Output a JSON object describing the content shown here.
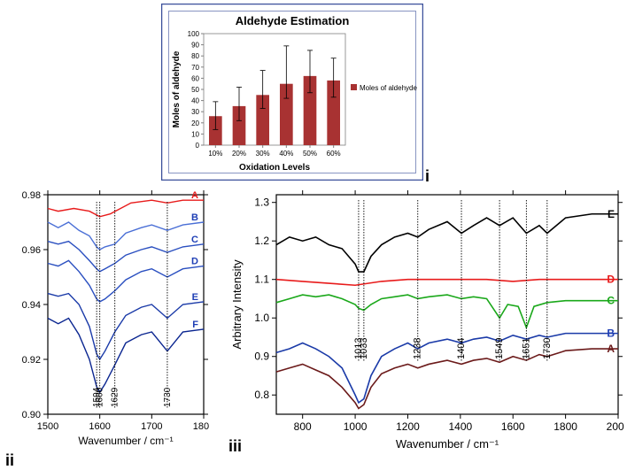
{
  "panel_labels": {
    "i": "i",
    "ii": "ii",
    "iii": "iii"
  },
  "bar_chart": {
    "type": "bar",
    "title": "Aldehyde Estimation",
    "title_fontsize": 13,
    "xlabel": "Oxidation Levels",
    "ylabel": "Moles of aldehyde",
    "label_fontsize": 10,
    "legend_label": "Moles of aldehyde",
    "legend_marker": "■",
    "ylim": [
      0,
      100
    ],
    "ytick_step": 10,
    "categories": [
      "10%",
      "20%",
      "30%",
      "40%",
      "50%",
      "60%"
    ],
    "values": [
      26,
      35,
      45,
      55,
      62,
      58
    ],
    "err_up": [
      13,
      17,
      22,
      34,
      23,
      20
    ],
    "err_down": [
      12,
      13,
      12,
      13,
      15,
      15
    ],
    "bar_color": "#a83232",
    "bar_width": 0.55,
    "background_color": "#ffffff",
    "border_color": "#3a4f9a",
    "plot_border_color": "#808080",
    "grid": false
  },
  "spectrum_ii": {
    "type": "line",
    "xlabel": "Wavenumber / cm⁻¹",
    "label_fontsize": 12,
    "ylim": [
      0.9,
      0.98
    ],
    "ytick_step": 0.02,
    "xlim": [
      1500,
      1800
    ],
    "xtick_step": 100,
    "background_color": "#ffffff",
    "axis_color": "#000000",
    "tick_fontsize": 11,
    "annotation_lines": [
      1594,
      1600,
      1629,
      1730
    ],
    "annotation_color": "#000000",
    "bracket_range": [
      1594,
      1730
    ],
    "series": [
      {
        "label": "A",
        "color": "#e81b1b",
        "label_color": "#e81b1b",
        "offset": 0.975,
        "pts": [
          [
            1500,
            0.975
          ],
          [
            1520,
            0.974
          ],
          [
            1550,
            0.975
          ],
          [
            1580,
            0.974
          ],
          [
            1600,
            0.972
          ],
          [
            1620,
            0.973
          ],
          [
            1640,
            0.975
          ],
          [
            1660,
            0.977
          ],
          [
            1700,
            0.978
          ],
          [
            1730,
            0.977
          ],
          [
            1760,
            0.978
          ],
          [
            1800,
            0.978
          ]
        ]
      },
      {
        "label": "B",
        "color": "#4a6fd6",
        "label_color": "#1f3fb5",
        "offset": 0.968,
        "pts": [
          [
            1500,
            0.97
          ],
          [
            1520,
            0.968
          ],
          [
            1540,
            0.97
          ],
          [
            1560,
            0.967
          ],
          [
            1580,
            0.965
          ],
          [
            1594,
            0.961
          ],
          [
            1600,
            0.96
          ],
          [
            1610,
            0.961
          ],
          [
            1629,
            0.962
          ],
          [
            1650,
            0.966
          ],
          [
            1680,
            0.968
          ],
          [
            1700,
            0.969
          ],
          [
            1730,
            0.967
          ],
          [
            1760,
            0.969
          ],
          [
            1800,
            0.97
          ]
        ]
      },
      {
        "label": "C",
        "color": "#2a4fc0",
        "label_color": "#1f3fb5",
        "offset": 0.96,
        "pts": [
          [
            1500,
            0.963
          ],
          [
            1520,
            0.962
          ],
          [
            1540,
            0.963
          ],
          [
            1560,
            0.96
          ],
          [
            1580,
            0.956
          ],
          [
            1594,
            0.953
          ],
          [
            1600,
            0.952
          ],
          [
            1610,
            0.953
          ],
          [
            1629,
            0.955
          ],
          [
            1650,
            0.958
          ],
          [
            1680,
            0.96
          ],
          [
            1700,
            0.961
          ],
          [
            1730,
            0.959
          ],
          [
            1760,
            0.961
          ],
          [
            1800,
            0.962
          ]
        ]
      },
      {
        "label": "D",
        "color": "#2a4fc0",
        "label_color": "#1f3fb5",
        "offset": 0.952,
        "pts": [
          [
            1500,
            0.955
          ],
          [
            1520,
            0.954
          ],
          [
            1540,
            0.956
          ],
          [
            1560,
            0.952
          ],
          [
            1580,
            0.947
          ],
          [
            1594,
            0.942
          ],
          [
            1600,
            0.941
          ],
          [
            1610,
            0.942
          ],
          [
            1629,
            0.945
          ],
          [
            1650,
            0.949
          ],
          [
            1680,
            0.952
          ],
          [
            1700,
            0.953
          ],
          [
            1730,
            0.95
          ],
          [
            1760,
            0.953
          ],
          [
            1800,
            0.954
          ]
        ]
      },
      {
        "label": "E",
        "color": "#1a3aa8",
        "label_color": "#1f3fb5",
        "offset": 0.938,
        "pts": [
          [
            1500,
            0.944
          ],
          [
            1520,
            0.943
          ],
          [
            1540,
            0.944
          ],
          [
            1560,
            0.94
          ],
          [
            1580,
            0.932
          ],
          [
            1594,
            0.922
          ],
          [
            1600,
            0.92
          ],
          [
            1610,
            0.923
          ],
          [
            1629,
            0.93
          ],
          [
            1650,
            0.936
          ],
          [
            1680,
            0.939
          ],
          [
            1700,
            0.94
          ],
          [
            1730,
            0.935
          ],
          [
            1760,
            0.94
          ],
          [
            1800,
            0.941
          ]
        ]
      },
      {
        "label": "F",
        "color": "#0a2590",
        "label_color": "#1f3fb5",
        "offset": 0.928,
        "pts": [
          [
            1500,
            0.935
          ],
          [
            1520,
            0.933
          ],
          [
            1540,
            0.935
          ],
          [
            1560,
            0.929
          ],
          [
            1580,
            0.92
          ],
          [
            1594,
            0.91
          ],
          [
            1600,
            0.908
          ],
          [
            1610,
            0.911
          ],
          [
            1629,
            0.918
          ],
          [
            1650,
            0.926
          ],
          [
            1680,
            0.929
          ],
          [
            1700,
            0.93
          ],
          [
            1730,
            0.923
          ],
          [
            1760,
            0.93
          ],
          [
            1800,
            0.931
          ]
        ]
      }
    ]
  },
  "spectrum_iii": {
    "type": "line",
    "xlabel": "Wavenumber / cm⁻¹",
    "ylabel": "Arbitrary Intensity",
    "label_fontsize": 13,
    "ylim": [
      0.75,
      1.32
    ],
    "yticks": [
      0.8,
      0.9,
      1.0,
      1.1,
      1.2,
      1.3
    ],
    "xlim": [
      700,
      2000
    ],
    "xtick_step": 200,
    "background_color": "#ffffff",
    "axis_color": "#000000",
    "tick_fontsize": 12,
    "annotation_lines": [
      1013,
      1033,
      1238,
      1404,
      1549,
      1651,
      1730
    ],
    "annotation_color": "#000000",
    "series": [
      {
        "label": "E",
        "color": "#000000",
        "label_color": "#000000",
        "pts": [
          [
            700,
            1.19
          ],
          [
            750,
            1.21
          ],
          [
            800,
            1.2
          ],
          [
            850,
            1.21
          ],
          [
            900,
            1.19
          ],
          [
            950,
            1.18
          ],
          [
            1000,
            1.14
          ],
          [
            1013,
            1.12
          ],
          [
            1033,
            1.12
          ],
          [
            1060,
            1.16
          ],
          [
            1100,
            1.19
          ],
          [
            1150,
            1.21
          ],
          [
            1200,
            1.22
          ],
          [
            1238,
            1.21
          ],
          [
            1280,
            1.23
          ],
          [
            1350,
            1.25
          ],
          [
            1404,
            1.22
          ],
          [
            1450,
            1.24
          ],
          [
            1500,
            1.26
          ],
          [
            1549,
            1.24
          ],
          [
            1600,
            1.26
          ],
          [
            1651,
            1.22
          ],
          [
            1700,
            1.24
          ],
          [
            1730,
            1.22
          ],
          [
            1800,
            1.26
          ],
          [
            1900,
            1.27
          ],
          [
            2000,
            1.27
          ]
        ]
      },
      {
        "label": "D",
        "color": "#e81b1b",
        "label_color": "#e81b1b",
        "pts": [
          [
            700,
            1.1
          ],
          [
            800,
            1.095
          ],
          [
            900,
            1.09
          ],
          [
            1000,
            1.085
          ],
          [
            1100,
            1.095
          ],
          [
            1200,
            1.1
          ],
          [
            1300,
            1.1
          ],
          [
            1400,
            1.1
          ],
          [
            1500,
            1.1
          ],
          [
            1600,
            1.095
          ],
          [
            1700,
            1.1
          ],
          [
            1800,
            1.1
          ],
          [
            1900,
            1.1
          ],
          [
            2000,
            1.1
          ]
        ]
      },
      {
        "label": "C",
        "color": "#1aa81a",
        "label_color": "#1aa81a",
        "pts": [
          [
            700,
            1.04
          ],
          [
            750,
            1.05
          ],
          [
            800,
            1.06
          ],
          [
            850,
            1.055
          ],
          [
            900,
            1.06
          ],
          [
            950,
            1.05
          ],
          [
            1000,
            1.035
          ],
          [
            1013,
            1.025
          ],
          [
            1033,
            1.02
          ],
          [
            1060,
            1.035
          ],
          [
            1100,
            1.05
          ],
          [
            1150,
            1.055
          ],
          [
            1200,
            1.06
          ],
          [
            1238,
            1.05
          ],
          [
            1280,
            1.055
          ],
          [
            1350,
            1.06
          ],
          [
            1404,
            1.05
          ],
          [
            1450,
            1.055
          ],
          [
            1500,
            1.05
          ],
          [
            1549,
            1.0
          ],
          [
            1580,
            1.035
          ],
          [
            1620,
            1.03
          ],
          [
            1651,
            0.975
          ],
          [
            1680,
            1.03
          ],
          [
            1730,
            1.04
          ],
          [
            1800,
            1.045
          ],
          [
            1900,
            1.045
          ],
          [
            2000,
            1.045
          ]
        ]
      },
      {
        "label": "B",
        "color": "#1a3aa8",
        "label_color": "#1f3fb5",
        "pts": [
          [
            700,
            0.91
          ],
          [
            750,
            0.92
          ],
          [
            800,
            0.935
          ],
          [
            850,
            0.92
          ],
          [
            900,
            0.9
          ],
          [
            950,
            0.87
          ],
          [
            1000,
            0.8
          ],
          [
            1013,
            0.78
          ],
          [
            1033,
            0.79
          ],
          [
            1060,
            0.85
          ],
          [
            1100,
            0.9
          ],
          [
            1150,
            0.92
          ],
          [
            1200,
            0.935
          ],
          [
            1238,
            0.92
          ],
          [
            1280,
            0.935
          ],
          [
            1350,
            0.945
          ],
          [
            1404,
            0.935
          ],
          [
            1450,
            0.945
          ],
          [
            1500,
            0.95
          ],
          [
            1549,
            0.94
          ],
          [
            1600,
            0.955
          ],
          [
            1651,
            0.945
          ],
          [
            1700,
            0.955
          ],
          [
            1730,
            0.95
          ],
          [
            1800,
            0.96
          ],
          [
            1900,
            0.96
          ],
          [
            2000,
            0.96
          ]
        ]
      },
      {
        "label": "A",
        "color": "#6b1a1a",
        "label_color": "#6b1a1a",
        "pts": [
          [
            700,
            0.86
          ],
          [
            750,
            0.87
          ],
          [
            800,
            0.88
          ],
          [
            850,
            0.865
          ],
          [
            900,
            0.85
          ],
          [
            950,
            0.82
          ],
          [
            1000,
            0.78
          ],
          [
            1013,
            0.765
          ],
          [
            1033,
            0.775
          ],
          [
            1060,
            0.82
          ],
          [
            1100,
            0.855
          ],
          [
            1150,
            0.87
          ],
          [
            1200,
            0.88
          ],
          [
            1238,
            0.87
          ],
          [
            1280,
            0.88
          ],
          [
            1350,
            0.89
          ],
          [
            1404,
            0.88
          ],
          [
            1450,
            0.89
          ],
          [
            1500,
            0.895
          ],
          [
            1549,
            0.885
          ],
          [
            1600,
            0.9
          ],
          [
            1651,
            0.89
          ],
          [
            1700,
            0.905
          ],
          [
            1730,
            0.9
          ],
          [
            1800,
            0.915
          ],
          [
            1900,
            0.92
          ],
          [
            2000,
            0.92
          ]
        ]
      }
    ]
  }
}
